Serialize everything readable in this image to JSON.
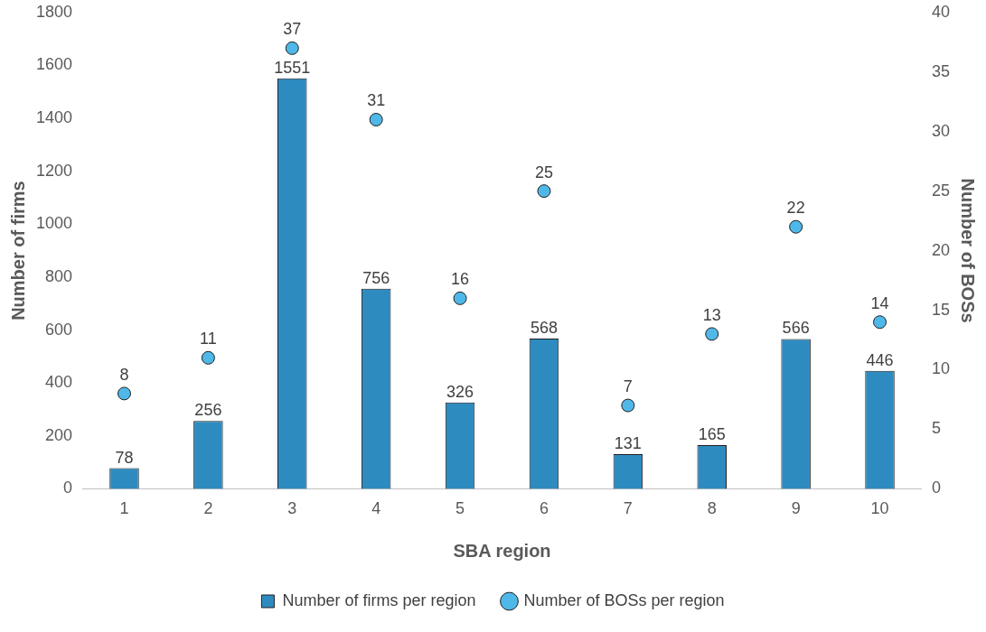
{
  "chart_data": {
    "type": "bar",
    "xlabel": "SBA region",
    "ylabel": "Number of firms",
    "y2label": "Number of BOSs",
    "categories": [
      "1",
      "2",
      "3",
      "4",
      "5",
      "6",
      "7",
      "8",
      "9",
      "10"
    ],
    "series": [
      {
        "name": "Number of firms per region",
        "color": "#2e8bc0",
        "values": [
          78,
          256,
          1551,
          756,
          326,
          568,
          131,
          165,
          566,
          446
        ]
      },
      {
        "name": "Number of BOSs per region",
        "type": "scatter",
        "axis": "y2",
        "color": "#4fb8e8",
        "values": [
          8,
          11,
          37,
          31,
          16,
          25,
          7,
          13,
          22,
          14
        ]
      }
    ],
    "ylim": [
      0,
      1800
    ],
    "yticks": [
      0,
      200,
      400,
      600,
      800,
      1000,
      1200,
      1400,
      1600,
      1800
    ],
    "y2lim": [
      0,
      40
    ],
    "y2ticks": [
      0,
      5,
      10,
      15,
      20,
      25,
      30,
      35,
      40
    ],
    "grid": false,
    "legend": "bottom",
    "marker": "circle",
    "data_labels": true
  }
}
